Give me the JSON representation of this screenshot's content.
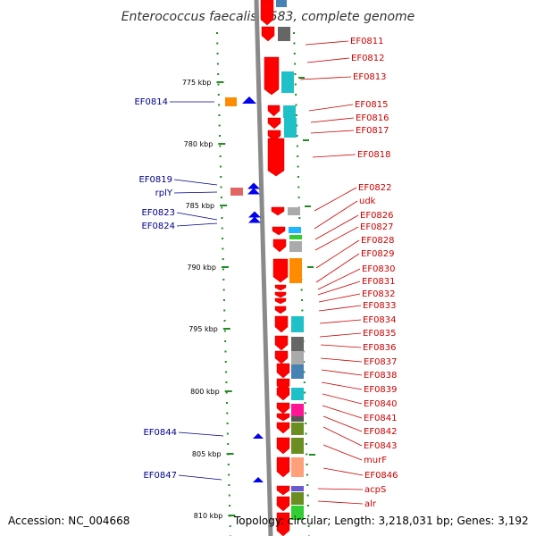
{
  "title": "Enterococcus faecalis V583, complete genome",
  "footer": {
    "accession": "Accession: NC_004668",
    "topology": "Topology: circular; Length: 3,218,031 bp; Genes: 3,192"
  },
  "colors": {
    "gene_forward": "#ff0000",
    "left_label": "#00008b",
    "right_label": "#cc0000",
    "backbone": "#888888",
    "tick_dots": "#228b22"
  },
  "scale": {
    "ticks": [
      "775 kbp",
      "780 kbp",
      "785 kbp",
      "790 kbp",
      "795 kbp",
      "800 kbp",
      "805 kbp",
      "810 kbp"
    ]
  },
  "left_labels": [
    "EF0814",
    "EF0819",
    "rplY",
    "EF0823",
    "EF0824",
    "EF0844",
    "EF0847"
  ],
  "right_labels": [
    "EF0811",
    "EF0812",
    "EF0813",
    "EF0815",
    "EF0816",
    "EF0817",
    "EF0818",
    "EF0822",
    "udk",
    "EF0826",
    "EF0827",
    "EF0828",
    "EF0829",
    "EF0830",
    "EF0831",
    "EF0832",
    "EF0833",
    "EF0834",
    "EF0835",
    "EF0836",
    "EF0837",
    "EF0838",
    "EF0839",
    "EF0840",
    "EF0841",
    "EF0842",
    "EF0843",
    "murF",
    "EF0846",
    "acpS",
    "alr"
  ]
}
